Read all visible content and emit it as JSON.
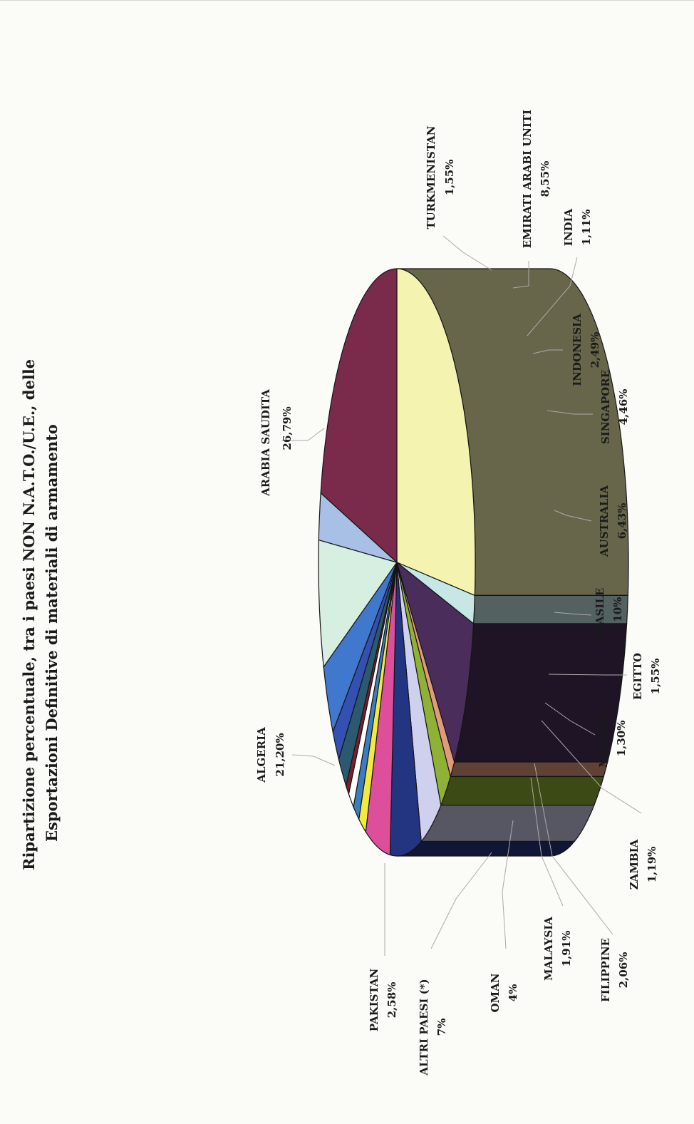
{
  "chart_data": {
    "type": "pie",
    "title": "Ripartizione percentuale, tra i paesi NON N.A.T.O./U.E., delle",
    "subtitle": "Esportazioni Definitive di materiali di armamento",
    "slices": [
      {
        "label": "ARABIA SAUDITA",
        "value_text": "26,79%",
        "value": 26.79,
        "color": "#f5f3b0"
      },
      {
        "label": "TURKMENISTAN",
        "value_text": "1,55%",
        "value": 1.55,
        "color": "#c7e6e6"
      },
      {
        "label": "EMIRATI ARABI UNITI",
        "value_text": "8,55%",
        "value": 8.55,
        "color": "#4a2d5a"
      },
      {
        "label": "INDIA",
        "value_text": "1,11%",
        "value": 1.11,
        "color": "#e29a7e"
      },
      {
        "label": "INDONESIA",
        "value_text": "2,49%",
        "value": 2.49,
        "color": "#8fb135"
      },
      {
        "label": "SINGAPORE",
        "value_text": "4,46%",
        "value": 4.46,
        "color": "#cfd0ee"
      },
      {
        "label": "AUSTRALIA",
        "value_text": "6,43%",
        "value": 6.43,
        "color": "#233580"
      },
      {
        "label": "BRASILE",
        "value_text": "5,10%",
        "value": 5.1,
        "color": "#dd4f9a"
      },
      {
        "label": "EGITTO",
        "value_text": "1,55%",
        "value": 1.55,
        "color": "#f3ea40"
      },
      {
        "label": "MESSICO",
        "value_text": "1,30%",
        "value": 1.3,
        "color": "#3a7ec0"
      },
      {
        "label": "ZAMBIA",
        "value_text": "1,19%",
        "value": 1.19,
        "color": "#ffffff"
      },
      {
        "label": "",
        "value_text": "",
        "value": 0.7,
        "color": "#7a1f2a"
      },
      {
        "label": "FILIPPINE",
        "value_text": "2,06%",
        "value": 2.06,
        "color": "#2b5a70"
      },
      {
        "label": "MALAYSIA",
        "value_text": "1,91%",
        "value": 1.91,
        "color": "#3450b0"
      },
      {
        "label": "OMAN",
        "value_text": "4%",
        "value": 4,
        "color": "#3f78cc"
      },
      {
        "label": "ALTRI PAESI (*)",
        "value_text": "7%",
        "value": 7,
        "color": "#d7efe0"
      },
      {
        "label": "PAKISTAN",
        "value_text": "2,58%",
        "value": 2.58,
        "color": "#a8c0e6"
      },
      {
        "label": "ALGERIA",
        "value_text": "21,20%",
        "value": 21.2,
        "color": "#7a2a4a"
      }
    ],
    "legend": "none"
  }
}
